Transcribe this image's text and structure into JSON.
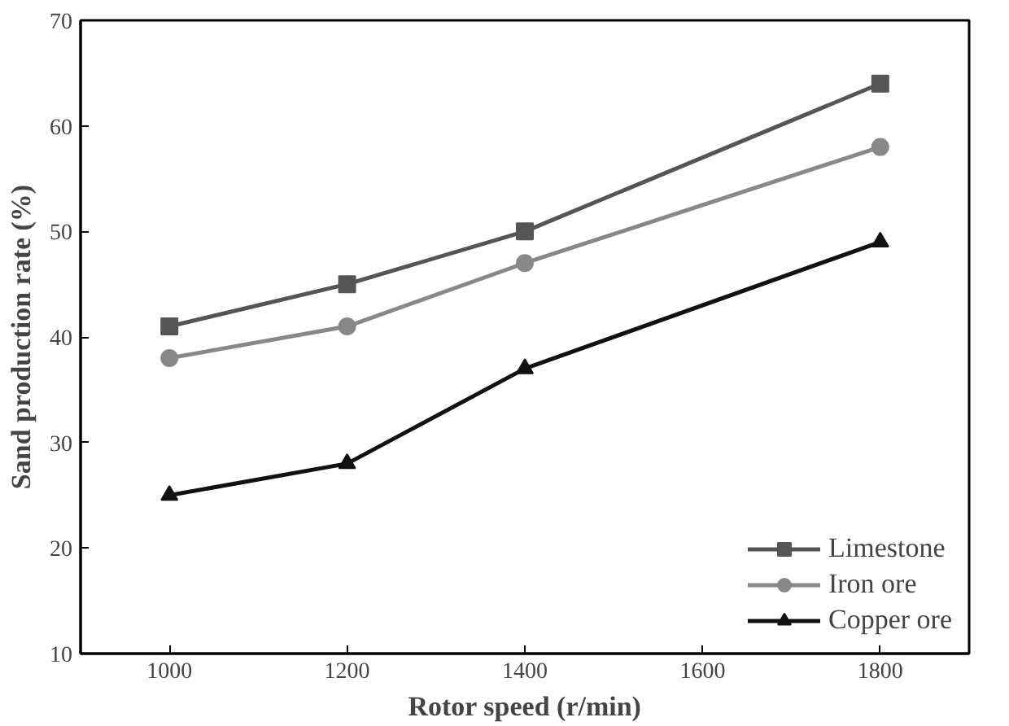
{
  "chart_data": {
    "type": "line",
    "xlabel": "Rotor speed (r/min)",
    "ylabel": "Sand production rate (%)",
    "x": [
      1000,
      1200,
      1400,
      1600,
      1800
    ],
    "series": [
      {
        "name": "Limestone",
        "color": "#555555",
        "marker": "square",
        "values": [
          41,
          45,
          50,
          null,
          64
        ]
      },
      {
        "name": "Iron ore",
        "color": "#888888",
        "marker": "circle",
        "values": [
          38,
          41,
          47,
          null,
          58
        ]
      },
      {
        "name": "Copper ore",
        "color": "#111111",
        "marker": "triangle",
        "values": [
          25,
          28,
          37,
          null,
          49
        ]
      }
    ],
    "xlim": [
      900,
      1900
    ],
    "xticks": [
      1000,
      1200,
      1400,
      1600,
      1800
    ],
    "ylim": [
      10,
      70
    ],
    "yticks": [
      10,
      20,
      30,
      40,
      50,
      60,
      70
    ],
    "grid": false,
    "legend": "bottom right",
    "line_style": "solid"
  }
}
